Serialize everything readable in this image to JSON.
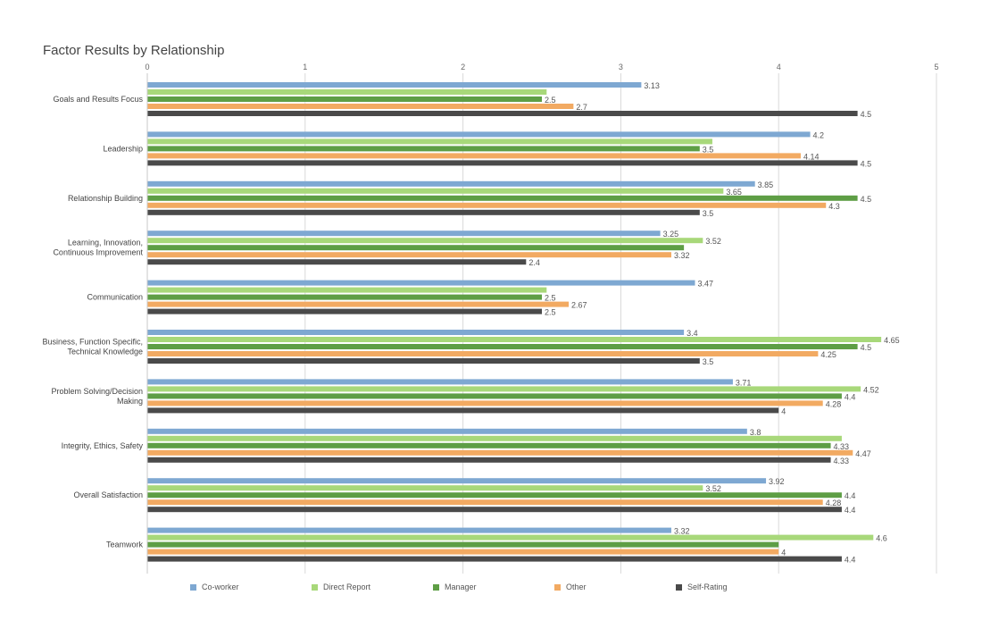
{
  "chart_data": {
    "type": "bar",
    "orientation": "horizontal",
    "title": "Factor Results by Relationship",
    "xlim": [
      0,
      5
    ],
    "xticks": [
      "0",
      "1",
      "2",
      "3",
      "4",
      "5"
    ],
    "grid": true,
    "legend_position": "bottom",
    "categories": [
      "Goals and Results Focus",
      "Leadership",
      "Relationship Building",
      "Learning, Innovation, Continuous Improvement",
      "Communication",
      "Business, Function Specific, Technical Knowledge",
      "Problem Solving/Decision Making",
      "Integrity, Ethics, Safety",
      "Overall Satisfaction",
      "Teamwork"
    ],
    "category_lines": [
      [
        "Goals and Results Focus"
      ],
      [
        "Leadership"
      ],
      [
        "Relationship Building"
      ],
      [
        "Learning, Innovation,",
        "Continuous Improvement"
      ],
      [
        "Communication"
      ],
      [
        "Business, Function Specific,",
        "Technical Knowledge"
      ],
      [
        "Problem Solving/Decision",
        "Making"
      ],
      [
        "Integrity, Ethics, Safety"
      ],
      [
        "Overall Satisfaction"
      ],
      [
        "Teamwork"
      ]
    ],
    "series": [
      {
        "name": "Co-worker",
        "color": "#7ea8d2",
        "values": [
          3.13,
          4.2,
          3.85,
          3.25,
          3.47,
          3.4,
          3.71,
          3.8,
          3.92,
          3.32
        ],
        "labels": [
          "3.13",
          "4.2",
          "3.85",
          "3.25",
          "3.47",
          "3.4",
          "3.71",
          "3.8",
          "3.92",
          "3.32"
        ]
      },
      {
        "name": "Direct Report",
        "color": "#a8d87a",
        "values": [
          2.53,
          3.58,
          3.65,
          3.52,
          2.53,
          4.65,
          4.52,
          4.4,
          3.52,
          4.6
        ],
        "labels": [
          "",
          "",
          "3.65",
          "3.52",
          "",
          "4.65",
          "4.52",
          "",
          "3.52",
          "4.6"
        ]
      },
      {
        "name": "Manager",
        "color": "#5e9e45",
        "values": [
          2.5,
          3.5,
          4.5,
          3.4,
          2.5,
          4.5,
          4.4,
          4.33,
          4.4,
          4.0
        ],
        "labels": [
          "2.5",
          "3.5",
          "4.5",
          "",
          "2.5",
          "4.5",
          "4.4",
          "4.33",
          "4.4",
          ""
        ]
      },
      {
        "name": "Other",
        "color": "#f2aa62",
        "values": [
          2.7,
          4.14,
          4.3,
          3.32,
          2.67,
          4.25,
          4.28,
          4.47,
          4.28,
          4.0
        ],
        "labels": [
          "2.7",
          "4.14",
          "4.3",
          "3.32",
          "2.67",
          "4.25",
          "4.28",
          "4.47",
          "4.28",
          "4"
        ]
      },
      {
        "name": "Self-Rating",
        "color": "#4a4a4a",
        "values": [
          4.5,
          4.5,
          3.5,
          2.4,
          2.5,
          3.5,
          4.0,
          4.33,
          4.4,
          4.4
        ],
        "labels": [
          "4.5",
          "4.5",
          "3.5",
          "2.4",
          "2.5",
          "3.5",
          "4",
          "4.33",
          "4.4",
          "4.4"
        ]
      }
    ]
  }
}
